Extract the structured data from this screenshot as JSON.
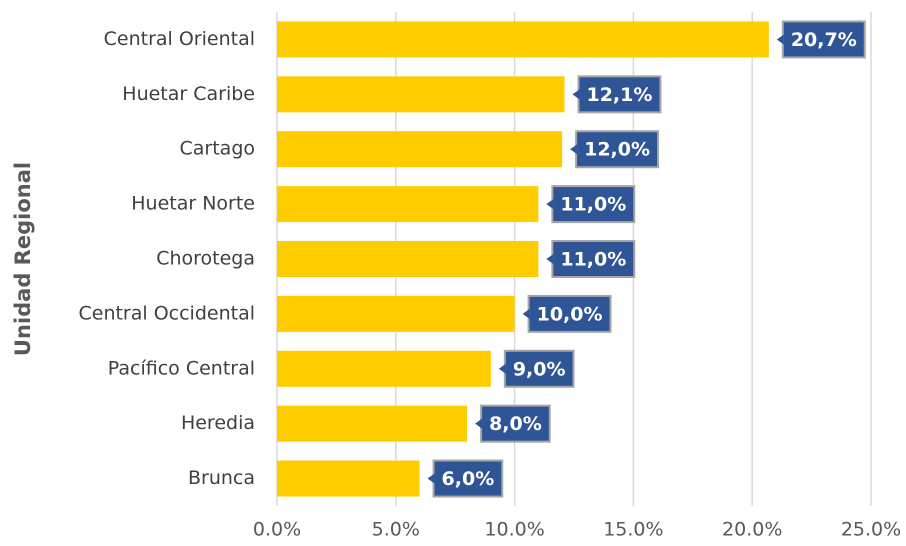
{
  "chart_data": {
    "type": "bar",
    "orientation": "horizontal",
    "y_label": "Unidad Regional",
    "categories": [
      "Central Oriental",
      "Huetar Caribe",
      "Cartago",
      "Huetar Norte",
      "Chorotega",
      "Central Occidental",
      "Pacífico Central",
      "Heredia",
      "Brunca"
    ],
    "values": [
      20.7,
      12.1,
      12.0,
      11.0,
      11.0,
      10.0,
      9.0,
      8.0,
      6.0
    ],
    "value_labels": [
      "20,7%",
      "12,1%",
      "12,0%",
      "11,0%",
      "11,0%",
      "10,0%",
      "9,0%",
      "8,0%",
      "6,0%"
    ],
    "color": "#ffcc00",
    "label_color": "#2f5597",
    "xlim": [
      0,
      25
    ],
    "xticks": [
      {
        "value": 0,
        "label": "0.0%"
      },
      {
        "value": 5,
        "label": "5.0%"
      },
      {
        "value": 10,
        "label": "10.0%"
      },
      {
        "value": 15,
        "label": "15.0%"
      },
      {
        "value": 20,
        "label": "20.0%"
      },
      {
        "value": 25,
        "label": "25.0%"
      }
    ],
    "grid": true
  }
}
